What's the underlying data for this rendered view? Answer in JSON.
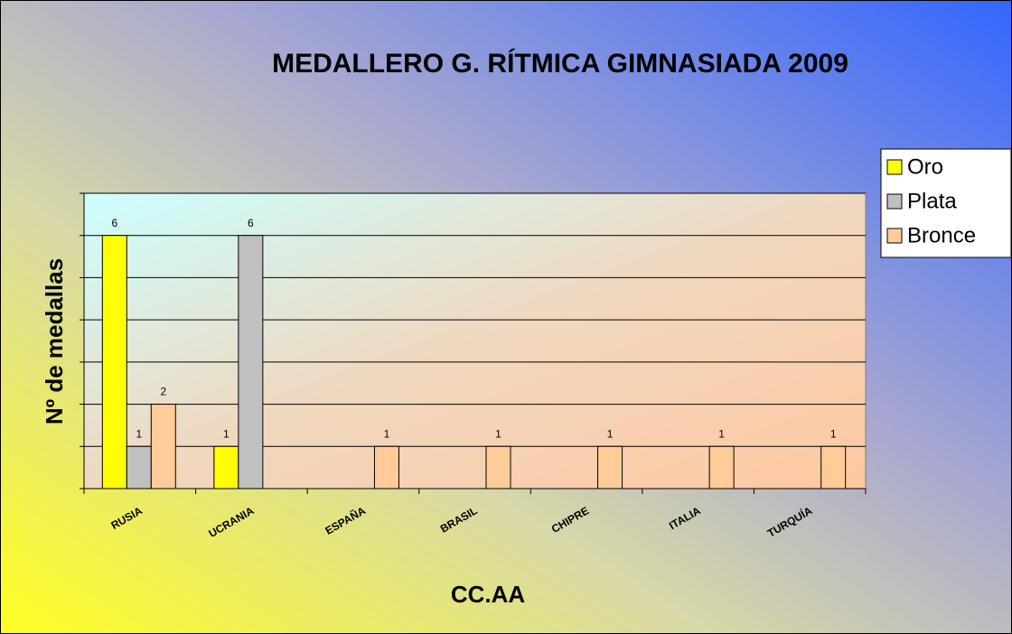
{
  "chart_data": {
    "type": "bar",
    "title": "MEDALLERO G. RÍTMICA GIMNASIADA 2009",
    "x_label": "CC.AA",
    "y_label": "Nº de medallas",
    "categories": [
      "RUSIA",
      "UCRANIA",
      "ESPAÑA",
      "BRASIL",
      "CHIPRE",
      "ITALIA",
      "TURQUÍA"
    ],
    "series": [
      {
        "name": "Oro",
        "color": "#ffff00",
        "values": [
          6,
          1,
          null,
          null,
          null,
          null,
          null
        ]
      },
      {
        "name": "Plata",
        "color": "#c0c0c0",
        "values": [
          1,
          6,
          null,
          null,
          null,
          null,
          null
        ]
      },
      {
        "name": "Bronce",
        "color": "#ffcc99",
        "values": [
          2,
          null,
          1,
          1,
          1,
          1,
          1
        ]
      }
    ],
    "ylim": [
      0,
      7
    ],
    "yticks": [
      0,
      1,
      2,
      3,
      4,
      5,
      6,
      7
    ],
    "grid": true,
    "legend": "right"
  }
}
